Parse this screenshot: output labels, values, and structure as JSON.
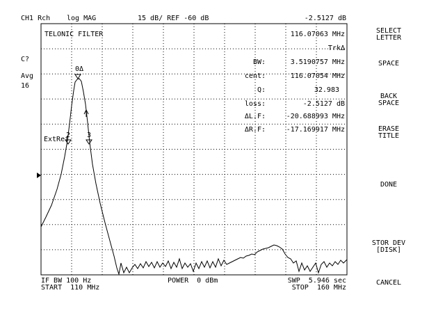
{
  "header": {
    "channel": "CH1 Rch",
    "format": "log MAG",
    "scale": "15 dB/ REF -60 dB",
    "marker_value": "-2.5127 dB"
  },
  "left_status": {
    "cal": "C?",
    "avg_label": "Avg",
    "avg_count": "16"
  },
  "title": "TELONIC FILTER",
  "readout": {
    "marker_freq": "116.07063 MHz",
    "trk": "TrkΔ",
    "bw_label": "BW:",
    "bw_value": "3.5190757 MHz",
    "cent_label": "cent:",
    "cent_value": "116.07054 MHz",
    "q_label": "Q:",
    "q_value": "32.983",
    "loss_label": "loss:",
    "loss_value": "-2.5127 dB",
    "dlf_label": "ΔL.F:",
    "dlf_value": "-20.688993 MHz",
    "drf_label": "ΔR.F:",
    "drf_value": "-17.169917 MHz"
  },
  "markers": {
    "main": "0Δ",
    "left": "2",
    "right": "3",
    "ext_ref": "ExtRef"
  },
  "footer": {
    "if_bw": "IF BW 100 Hz",
    "start": "START  110 MHz",
    "power": "POWER  0 dBm",
    "swp": "SWP  5.946 sec",
    "stop": "STOP  160 MHz"
  },
  "softkeys": {
    "select_letter": [
      "SELECT",
      "LETTER"
    ],
    "space": [
      "SPACE"
    ],
    "back_space": [
      "BACK",
      "SPACE"
    ],
    "erase_title": [
      "ERASE",
      "TITLE"
    ],
    "done": [
      "DONE"
    ],
    "stor_dev": [
      "STOR DEV",
      "[DISK]"
    ],
    "cancel": [
      "CANCEL"
    ]
  },
  "trace_style": {
    "color": "#000000"
  }
}
